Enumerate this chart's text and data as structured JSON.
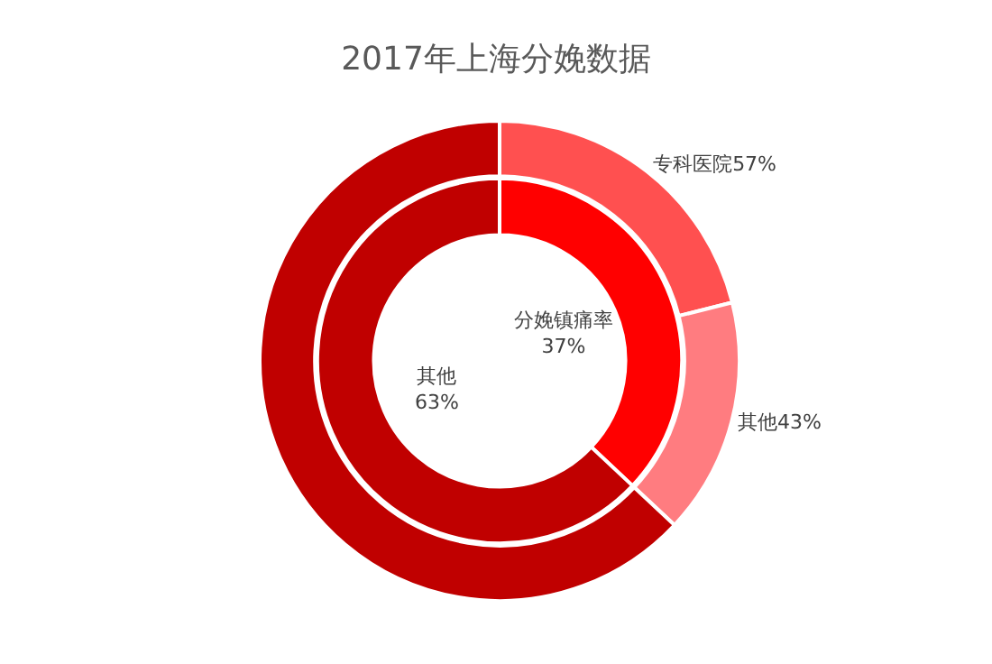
{
  "chart_data": [
    {
      "type": "donut",
      "title": "2017年上海分娩数据",
      "categories": [
        "专科医院",
        "其他",
        null
      ],
      "values": [
        57,
        43,
        170.3
      ],
      "value_labels": [
        "57%",
        "43%",
        null
      ],
      "colors": [
        "#ff5050",
        "#ff7c80",
        "#c00000"
      ],
      "legend": false
    },
    {
      "type": "donut",
      "categories": [
        "分娩镇痛率",
        "其他"
      ],
      "values": [
        37,
        63
      ],
      "value_labels": [
        "37%",
        "63%"
      ],
      "colors": [
        "#ff0000",
        "#c00000"
      ],
      "legend": false
    }
  ]
}
